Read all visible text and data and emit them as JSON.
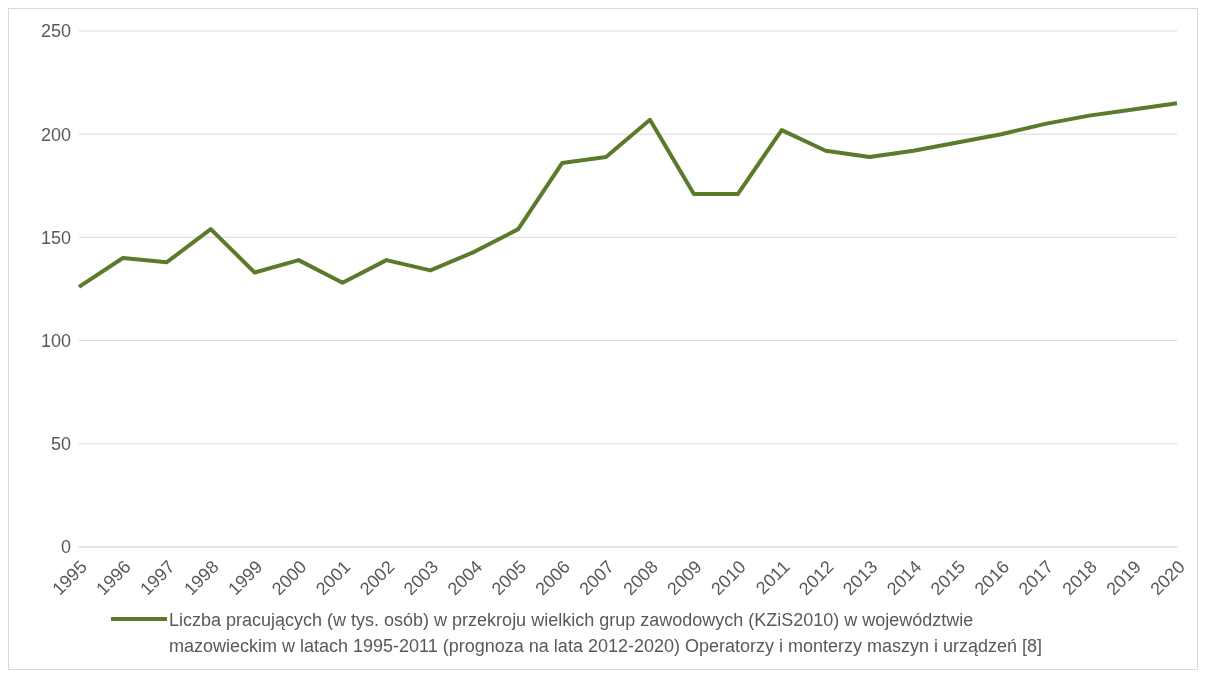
{
  "chart_data": {
    "type": "line",
    "categories": [
      "1995",
      "1996",
      "1997",
      "1998",
      "1999",
      "2000",
      "2001",
      "2002",
      "2003",
      "2004",
      "2005",
      "2006",
      "2007",
      "2008",
      "2009",
      "2010",
      "2011",
      "2012",
      "2013",
      "2014",
      "2015",
      "2016",
      "2017",
      "2018",
      "2019",
      "2020"
    ],
    "series": [
      {
        "name": "Liczba pracujących (w tys. osób) w przekroju wielkich grup zawodowych (KZiS2010) w województwie mazowieckim w latach 1995-2011 (prognoza na lata 2012-2020) Operatorzy i monterzy maszyn i urządzeń [8]",
        "color": "#5b7a2c",
        "values": [
          126,
          140,
          138,
          154,
          133,
          139,
          128,
          139,
          134,
          143,
          154,
          186,
          189,
          207,
          171,
          171,
          202,
          192,
          189,
          192,
          196,
          200,
          205,
          209,
          212,
          215
        ]
      }
    ],
    "ylim": [
      0,
      250
    ],
    "yticks": [
      0,
      50,
      100,
      150,
      200,
      250
    ],
    "grid": "y",
    "legend": "bottom",
    "marker": "none",
    "line_style": "solid"
  }
}
